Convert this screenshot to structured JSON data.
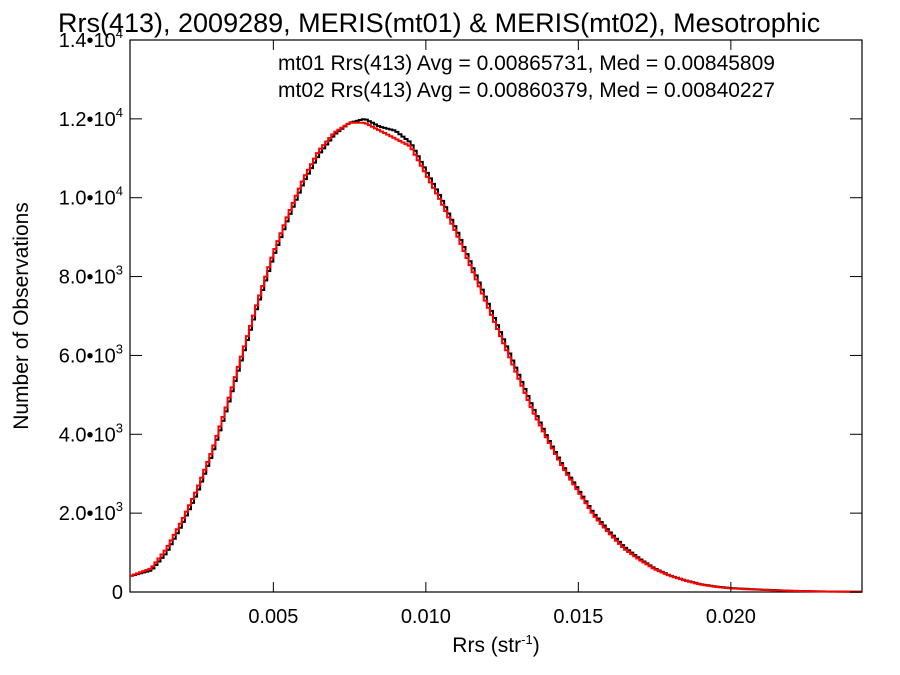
{
  "chart_data": {
    "type": "line",
    "title": "Rrs(413), 2009289, MERIS(mt01) & MERIS(mt02), Mesotrophic",
    "xlabel": "Rrs (str",
    "xlabel_sup": "-1",
    "xlabel_end": ")",
    "ylabel": "Number of Observations",
    "xlim": [
      0.0003,
      0.0243
    ],
    "ylim": [
      0,
      14000
    ],
    "xticks": [
      {
        "value": 0.005,
        "label": "0.005"
      },
      {
        "value": 0.01,
        "label": "0.010"
      },
      {
        "value": 0.015,
        "label": "0.015"
      },
      {
        "value": 0.02,
        "label": "0.020"
      }
    ],
    "yticks": [
      {
        "value": 0,
        "mant": "0",
        "exp": ""
      },
      {
        "value": 2000,
        "mant": "2.0•10",
        "exp": "3"
      },
      {
        "value": 4000,
        "mant": "4.0•10",
        "exp": "3"
      },
      {
        "value": 6000,
        "mant": "6.0•10",
        "exp": "3"
      },
      {
        "value": 8000,
        "mant": "8.0•10",
        "exp": "3"
      },
      {
        "value": 10000,
        "mant": "1.0•10",
        "exp": "4"
      },
      {
        "value": 12000,
        "mant": "1.2•10",
        "exp": "4"
      },
      {
        "value": 14000,
        "mant": "1.4•10",
        "exp": "4"
      }
    ],
    "grid": false,
    "legend_position": "top-right",
    "series": [
      {
        "name": "mt01 Rrs(413) Avg = 0.00865731, Med = 0.00845809",
        "color": "#000000",
        "x": [
          0.0003,
          0.001,
          0.0015,
          0.002,
          0.0025,
          0.003,
          0.0035,
          0.004,
          0.0045,
          0.005,
          0.0055,
          0.006,
          0.0065,
          0.007,
          0.0075,
          0.008,
          0.0085,
          0.009,
          0.0095,
          0.01,
          0.0105,
          0.011,
          0.0115,
          0.012,
          0.0125,
          0.013,
          0.0135,
          0.014,
          0.0145,
          0.015,
          0.0155,
          0.016,
          0.0165,
          0.017,
          0.0175,
          0.018,
          0.0185,
          0.019,
          0.0195,
          0.02,
          0.021,
          0.022,
          0.023,
          0.0243
        ],
        "y": [
          400,
          550,
          1000,
          1700,
          2500,
          3500,
          4700,
          6000,
          7300,
          8500,
          9500,
          10400,
          11100,
          11600,
          11900,
          12000,
          11800,
          11700,
          11400,
          10700,
          10000,
          9200,
          8300,
          7400,
          6500,
          5600,
          4700,
          3900,
          3200,
          2600,
          2000,
          1550,
          1150,
          850,
          600,
          420,
          300,
          200,
          140,
          100,
          60,
          30,
          15,
          5
        ]
      },
      {
        "name": "mt02 Rrs(413) Avg = 0.00860379, Med = 0.00840227",
        "color": "#ff0000",
        "x": [
          0.0003,
          0.001,
          0.0015,
          0.002,
          0.0025,
          0.003,
          0.0035,
          0.004,
          0.0045,
          0.005,
          0.0055,
          0.006,
          0.0065,
          0.007,
          0.0075,
          0.008,
          0.0085,
          0.009,
          0.0095,
          0.01,
          0.0105,
          0.011,
          0.0115,
          0.012,
          0.0125,
          0.013,
          0.0135,
          0.014,
          0.0145,
          0.015,
          0.0155,
          0.016,
          0.0165,
          0.017,
          0.0175,
          0.018,
          0.0185,
          0.019,
          0.0195,
          0.02,
          0.021,
          0.022,
          0.023,
          0.0243
        ],
        "y": [
          400,
          600,
          1100,
          1800,
          2600,
          3600,
          4800,
          6100,
          7400,
          8600,
          9600,
          10500,
          11200,
          11650,
          11900,
          11900,
          11700,
          11500,
          11300,
          10600,
          9900,
          9100,
          8200,
          7300,
          6400,
          5500,
          4600,
          3850,
          3150,
          2550,
          1950,
          1500,
          1100,
          820,
          580,
          410,
          290,
          190,
          130,
          90,
          55,
          28,
          12,
          5
        ]
      }
    ]
  }
}
